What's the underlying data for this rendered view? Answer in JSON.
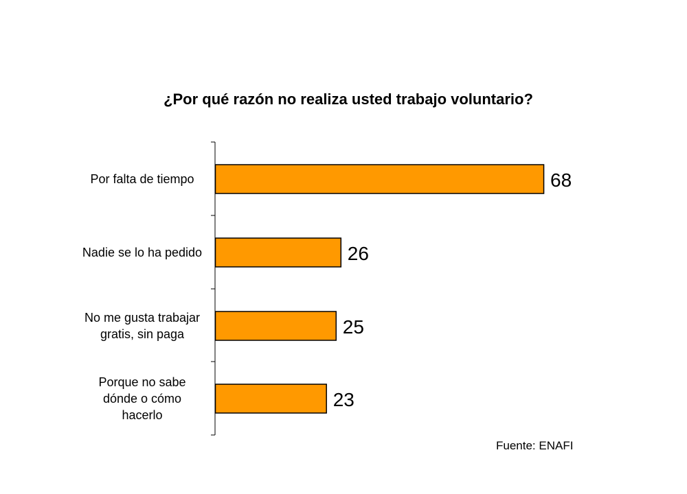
{
  "chart_data": {
    "type": "bar",
    "orientation": "horizontal",
    "title": "¿Por qué razón no realiza usted trabajo voluntario?",
    "categories": [
      [
        "Por falta de tiempo"
      ],
      [
        "Nadie se lo ha pedido"
      ],
      [
        "No me gusta trabajar",
        "gratis, sin paga"
      ],
      [
        "Porque no sabe",
        "dónde o cómo",
        "hacerlo"
      ]
    ],
    "values": [
      68,
      26,
      25,
      23
    ],
    "bar_color": "#FF9900",
    "bar_border_color": "#000000",
    "grid": false,
    "legend": "none"
  },
  "source": "Fuente: ENAFI"
}
